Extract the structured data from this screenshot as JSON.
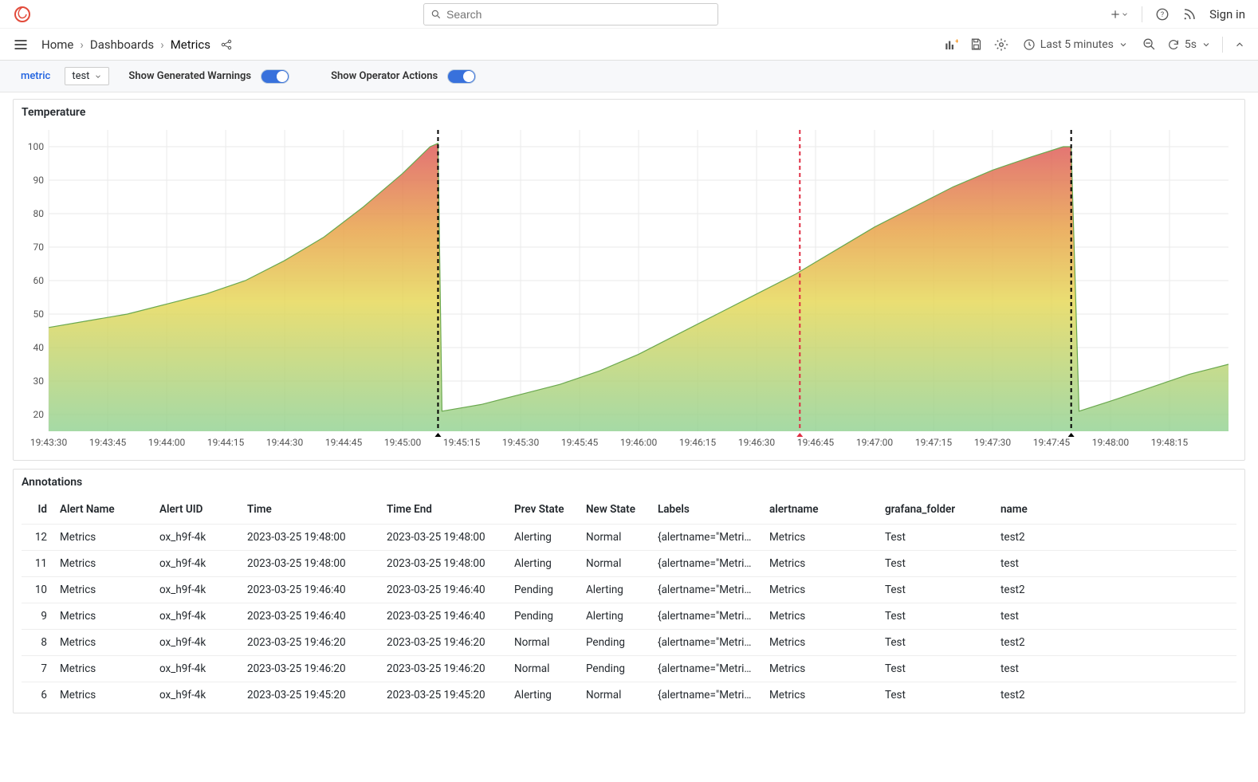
{
  "search": {
    "placeholder": "Search"
  },
  "topnav": {
    "signin": "Sign in"
  },
  "breadcrumbs": {
    "items": [
      "Home",
      "Dashboards",
      "Metrics"
    ],
    "sep": "›"
  },
  "timepicker": {
    "label": "Last 5 minutes",
    "refresh": "5s"
  },
  "controls": {
    "metric_label": "metric",
    "metric_value": "test",
    "warnings_label": "Show Generated Warnings",
    "operator_label": "Show Operator Actions"
  },
  "chart": {
    "title": "Temperature",
    "type": "area",
    "ylim": [
      15,
      105
    ],
    "yticks": [
      20,
      30,
      40,
      50,
      60,
      70,
      80,
      90,
      100
    ],
    "x_start": 0,
    "x_end": 300,
    "xticks": [
      {
        "t": 0,
        "label": "19:43:30"
      },
      {
        "t": 15,
        "label": "19:43:45"
      },
      {
        "t": 30,
        "label": "19:44:00"
      },
      {
        "t": 45,
        "label": "19:44:15"
      },
      {
        "t": 60,
        "label": "19:44:30"
      },
      {
        "t": 75,
        "label": "19:44:45"
      },
      {
        "t": 90,
        "label": "19:45:00"
      },
      {
        "t": 105,
        "label": "19:45:15"
      },
      {
        "t": 120,
        "label": "19:45:30"
      },
      {
        "t": 135,
        "label": "19:45:45"
      },
      {
        "t": 150,
        "label": "19:46:00"
      },
      {
        "t": 165,
        "label": "19:46:15"
      },
      {
        "t": 180,
        "label": "19:46:30"
      },
      {
        "t": 195,
        "label": "19:46:45"
      },
      {
        "t": 210,
        "label": "19:47:00"
      },
      {
        "t": 225,
        "label": "19:47:15"
      },
      {
        "t": 240,
        "label": "19:47:30"
      },
      {
        "t": 255,
        "label": "19:47:45"
      },
      {
        "t": 270,
        "label": "19:48:00"
      },
      {
        "t": 285,
        "label": "19:48:15"
      }
    ],
    "series": [
      {
        "t": 0,
        "v": 46
      },
      {
        "t": 10,
        "v": 48
      },
      {
        "t": 20,
        "v": 50
      },
      {
        "t": 30,
        "v": 53
      },
      {
        "t": 40,
        "v": 56
      },
      {
        "t": 50,
        "v": 60
      },
      {
        "t": 60,
        "v": 66
      },
      {
        "t": 70,
        "v": 73
      },
      {
        "t": 80,
        "v": 82
      },
      {
        "t": 90,
        "v": 92
      },
      {
        "t": 97,
        "v": 100
      },
      {
        "t": 99,
        "v": 101
      },
      {
        "t": 100,
        "v": 21
      },
      {
        "t": 110,
        "v": 23
      },
      {
        "t": 120,
        "v": 26
      },
      {
        "t": 130,
        "v": 29
      },
      {
        "t": 140,
        "v": 33
      },
      {
        "t": 150,
        "v": 38
      },
      {
        "t": 160,
        "v": 44
      },
      {
        "t": 170,
        "v": 50
      },
      {
        "t": 180,
        "v": 56
      },
      {
        "t": 190,
        "v": 62
      },
      {
        "t": 200,
        "v": 69
      },
      {
        "t": 210,
        "v": 76
      },
      {
        "t": 220,
        "v": 82
      },
      {
        "t": 230,
        "v": 88
      },
      {
        "t": 240,
        "v": 93
      },
      {
        "t": 250,
        "v": 97
      },
      {
        "t": 258,
        "v": 100
      },
      {
        "t": 260,
        "v": 100
      },
      {
        "t": 262,
        "v": 21
      },
      {
        "t": 270,
        "v": 24
      },
      {
        "t": 280,
        "v": 28
      },
      {
        "t": 290,
        "v": 32
      },
      {
        "t": 300,
        "v": 35
      }
    ],
    "markers": [
      {
        "t": 99,
        "color": "#000000"
      },
      {
        "t": 191,
        "color": "#e02f44"
      },
      {
        "t": 260,
        "color": "#000000"
      }
    ],
    "gradient": {
      "top": "#de5b5b",
      "midtop": "#e8a34a",
      "mid": "#e6d85a",
      "bottom": "#8fd08f"
    },
    "grid_color": "#eaeaea",
    "axis_text_color": "#555555",
    "axis_fontsize": 12,
    "title_fontsize": 14,
    "line_color": "#6aa84f",
    "line_width": 1.2
  },
  "annotations": {
    "title": "Annotations",
    "columns": [
      "Id",
      "Alert Name",
      "Alert UID",
      "Time",
      "Time End",
      "Prev State",
      "New State",
      "Labels",
      "alertname",
      "grafana_folder",
      "name"
    ],
    "rows": [
      [
        "12",
        "Metrics",
        "ox_h9f-4k",
        "2023-03-25 19:48:00",
        "2023-03-25 19:48:00",
        "Alerting",
        "Normal",
        "{alertname=\"Metric...",
        "Metrics",
        "Test",
        "test2"
      ],
      [
        "11",
        "Metrics",
        "ox_h9f-4k",
        "2023-03-25 19:48:00",
        "2023-03-25 19:48:00",
        "Alerting",
        "Normal",
        "{alertname=\"Metric...",
        "Metrics",
        "Test",
        "test"
      ],
      [
        "10",
        "Metrics",
        "ox_h9f-4k",
        "2023-03-25 19:46:40",
        "2023-03-25 19:46:40",
        "Pending",
        "Alerting",
        "{alertname=\"Metric...",
        "Metrics",
        "Test",
        "test2"
      ],
      [
        "9",
        "Metrics",
        "ox_h9f-4k",
        "2023-03-25 19:46:40",
        "2023-03-25 19:46:40",
        "Pending",
        "Alerting",
        "{alertname=\"Metric...",
        "Metrics",
        "Test",
        "test"
      ],
      [
        "8",
        "Metrics",
        "ox_h9f-4k",
        "2023-03-25 19:46:20",
        "2023-03-25 19:46:20",
        "Normal",
        "Pending",
        "{alertname=\"Metric...",
        "Metrics",
        "Test",
        "test2"
      ],
      [
        "7",
        "Metrics",
        "ox_h9f-4k",
        "2023-03-25 19:46:20",
        "2023-03-25 19:46:20",
        "Normal",
        "Pending",
        "{alertname=\"Metric...",
        "Metrics",
        "Test",
        "test"
      ],
      [
        "6",
        "Metrics",
        "ox_h9f-4k",
        "2023-03-25 19:45:20",
        "2023-03-25 19:45:20",
        "Alerting",
        "Normal",
        "{alertname=\"Metric...",
        "Metrics",
        "Test",
        "test2"
      ]
    ]
  },
  "table_layout": {
    "col_widths": [
      "40px",
      "125px",
      "110px",
      "175px",
      "160px",
      "90px",
      "90px",
      "140px",
      "145px",
      "145px",
      "auto"
    ]
  }
}
